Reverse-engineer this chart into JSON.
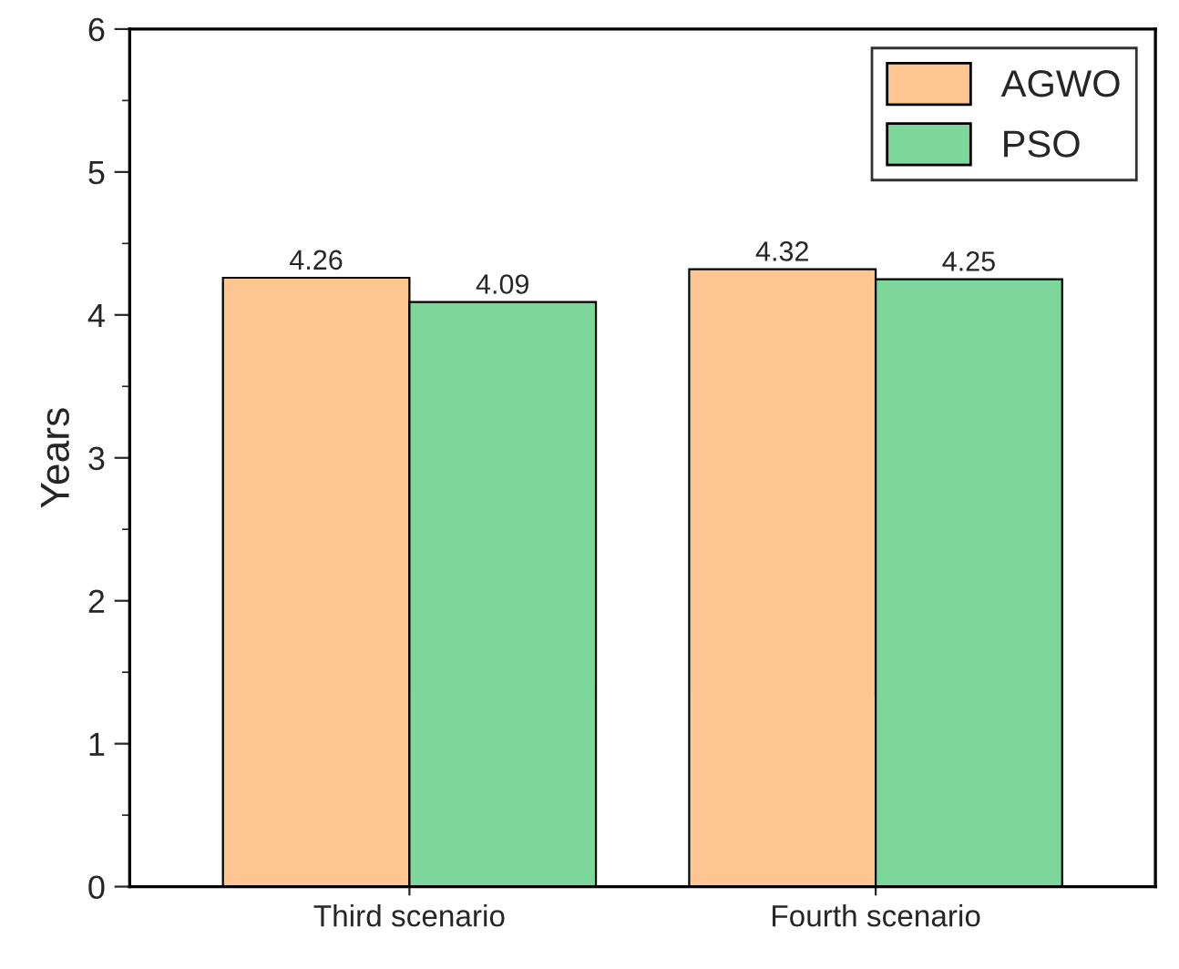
{
  "chart_data": {
    "type": "bar",
    "ylabel": "Years",
    "categories": [
      "Third scenario",
      "Fourth scenario"
    ],
    "series": [
      {
        "name": "AGWO",
        "color": "#fcc592",
        "values": [
          4.26,
          4.32
        ]
      },
      {
        "name": "PSO",
        "color": "#7dd69a",
        "values": [
          4.09,
          4.25
        ]
      }
    ],
    "ylim": [
      0,
      6
    ],
    "yticks": [
      0,
      1,
      2,
      3,
      4,
      5,
      6
    ],
    "data_labels": true,
    "legend": "top right",
    "grid": false
  }
}
